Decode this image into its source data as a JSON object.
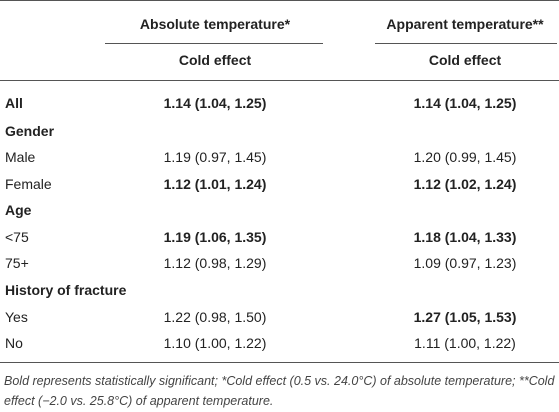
{
  "table": {
    "headers": [
      {
        "title": "Absolute temperature*",
        "sub": "Cold effect"
      },
      {
        "title": "Apparent temperature**",
        "sub": "Cold effect"
      }
    ],
    "rows": [
      {
        "label": "All",
        "bold": true,
        "cells": [
          {
            "text": "1.14 (1.04, 1.25)",
            "bold": true
          },
          {
            "text": "1.14 (1.04, 1.25)",
            "bold": true
          }
        ]
      },
      {
        "label": "Gender",
        "bold": true,
        "cells": []
      },
      {
        "label": "Male",
        "bold": false,
        "cells": [
          {
            "text": "1.19 (0.97, 1.45)",
            "bold": false
          },
          {
            "text": "1.20 (0.99, 1.45)",
            "bold": false
          }
        ]
      },
      {
        "label": "Female",
        "bold": false,
        "cells": [
          {
            "text": "1.12 (1.01, 1.24)",
            "bold": true
          },
          {
            "text": "1.12 (1.02, 1.24)",
            "bold": true
          }
        ]
      },
      {
        "label": "Age",
        "bold": true,
        "cells": []
      },
      {
        "label": "<75",
        "bold": false,
        "cells": [
          {
            "text": "1.19 (1.06, 1.35)",
            "bold": true
          },
          {
            "text": "1.18 (1.04, 1.33)",
            "bold": true
          }
        ]
      },
      {
        "label": "75+",
        "bold": false,
        "cells": [
          {
            "text": "1.12 (0.98, 1.29)",
            "bold": false
          },
          {
            "text": "1.09 (0.97, 1.23)",
            "bold": false
          }
        ]
      },
      {
        "label": "History of fracture",
        "bold": true,
        "cells": []
      },
      {
        "label": "Yes",
        "bold": false,
        "cells": [
          {
            "text": "1.22 (0.98, 1.50)",
            "bold": false
          },
          {
            "text": "1.27 (1.05, 1.53)",
            "bold": true
          }
        ]
      },
      {
        "label": "No",
        "bold": false,
        "cells": [
          {
            "text": "1.10 (1.00, 1.22)",
            "bold": false
          },
          {
            "text": "1.11 (1.00, 1.22)",
            "bold": false
          }
        ]
      }
    ]
  },
  "footnote": "Bold represents statistically significant; *Cold effect (0.5 vs. 24.0°C) of absolute temperature; **Cold effect (−2.0 vs. 25.8°C) of apparent temperature."
}
